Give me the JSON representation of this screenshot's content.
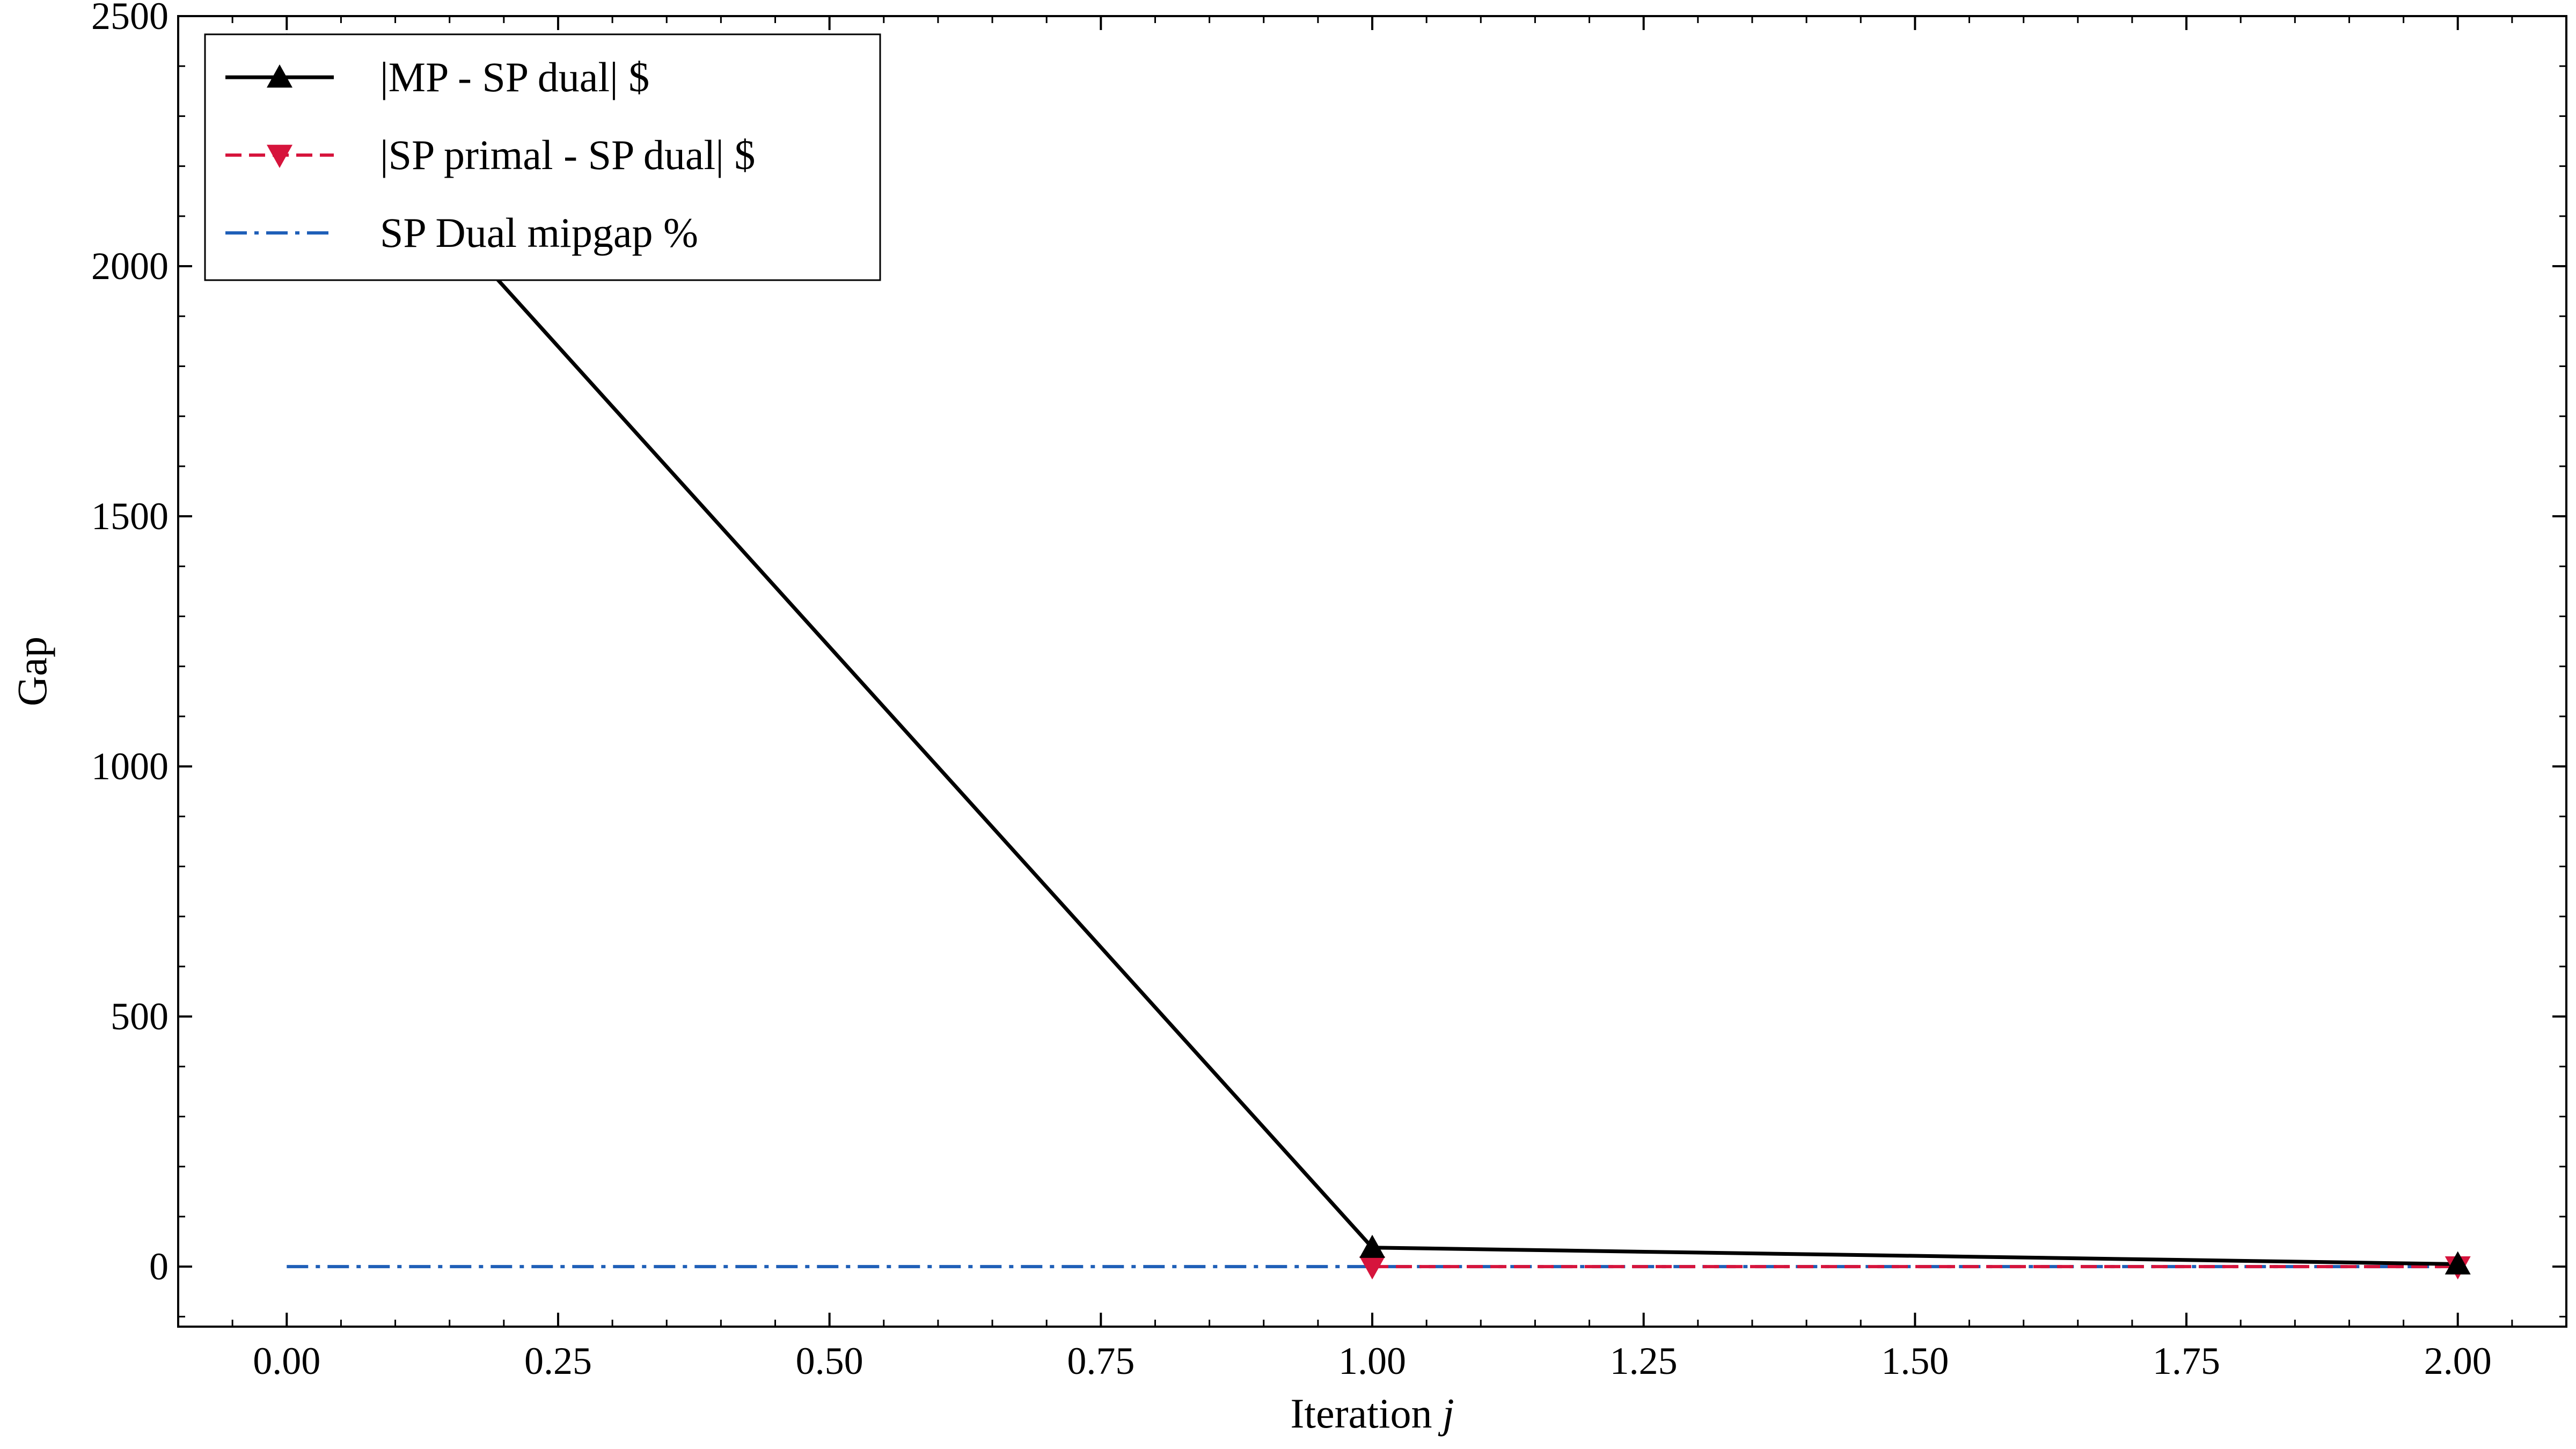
{
  "chart_data": {
    "type": "line",
    "xlabel": "Iteration",
    "xlabel_var": "j",
    "ylabel": "Gap",
    "xlim": [
      -0.1,
      2.1
    ],
    "ylim": [
      -120,
      2500
    ],
    "xticks": [
      0.0,
      0.25,
      0.5,
      0.75,
      1.0,
      1.25,
      1.5,
      1.75,
      2.0
    ],
    "xtick_labels": [
      "0.00",
      "0.25",
      "0.50",
      "0.75",
      "1.00",
      "1.25",
      "1.50",
      "1.75",
      "2.00"
    ],
    "yticks": [
      0,
      500,
      1000,
      1500,
      2000,
      2500
    ],
    "ytick_labels": [
      "0",
      "500",
      "1000",
      "1500",
      "2000",
      "2500"
    ],
    "grid": false,
    "legend_position": "top-left",
    "series": [
      {
        "name": "|MP - SP dual| $",
        "x": [
          0,
          1,
          2
        ],
        "y": [
          2440,
          38,
          5
        ],
        "color": "#000000",
        "line_style": "solid",
        "marker": "triangle-up"
      },
      {
        "name": "|SP primal - SP dual| $",
        "x": [
          1,
          2
        ],
        "y": [
          0,
          0
        ],
        "color": "#d6143c",
        "line_style": "dashed",
        "marker": "triangle-down"
      },
      {
        "name": "SP Dual mipgap %",
        "x": [
          0,
          1,
          2
        ],
        "y": [
          0,
          0,
          0
        ],
        "color": "#1f5fb8",
        "line_style": "dashdot",
        "marker": "none"
      }
    ]
  }
}
